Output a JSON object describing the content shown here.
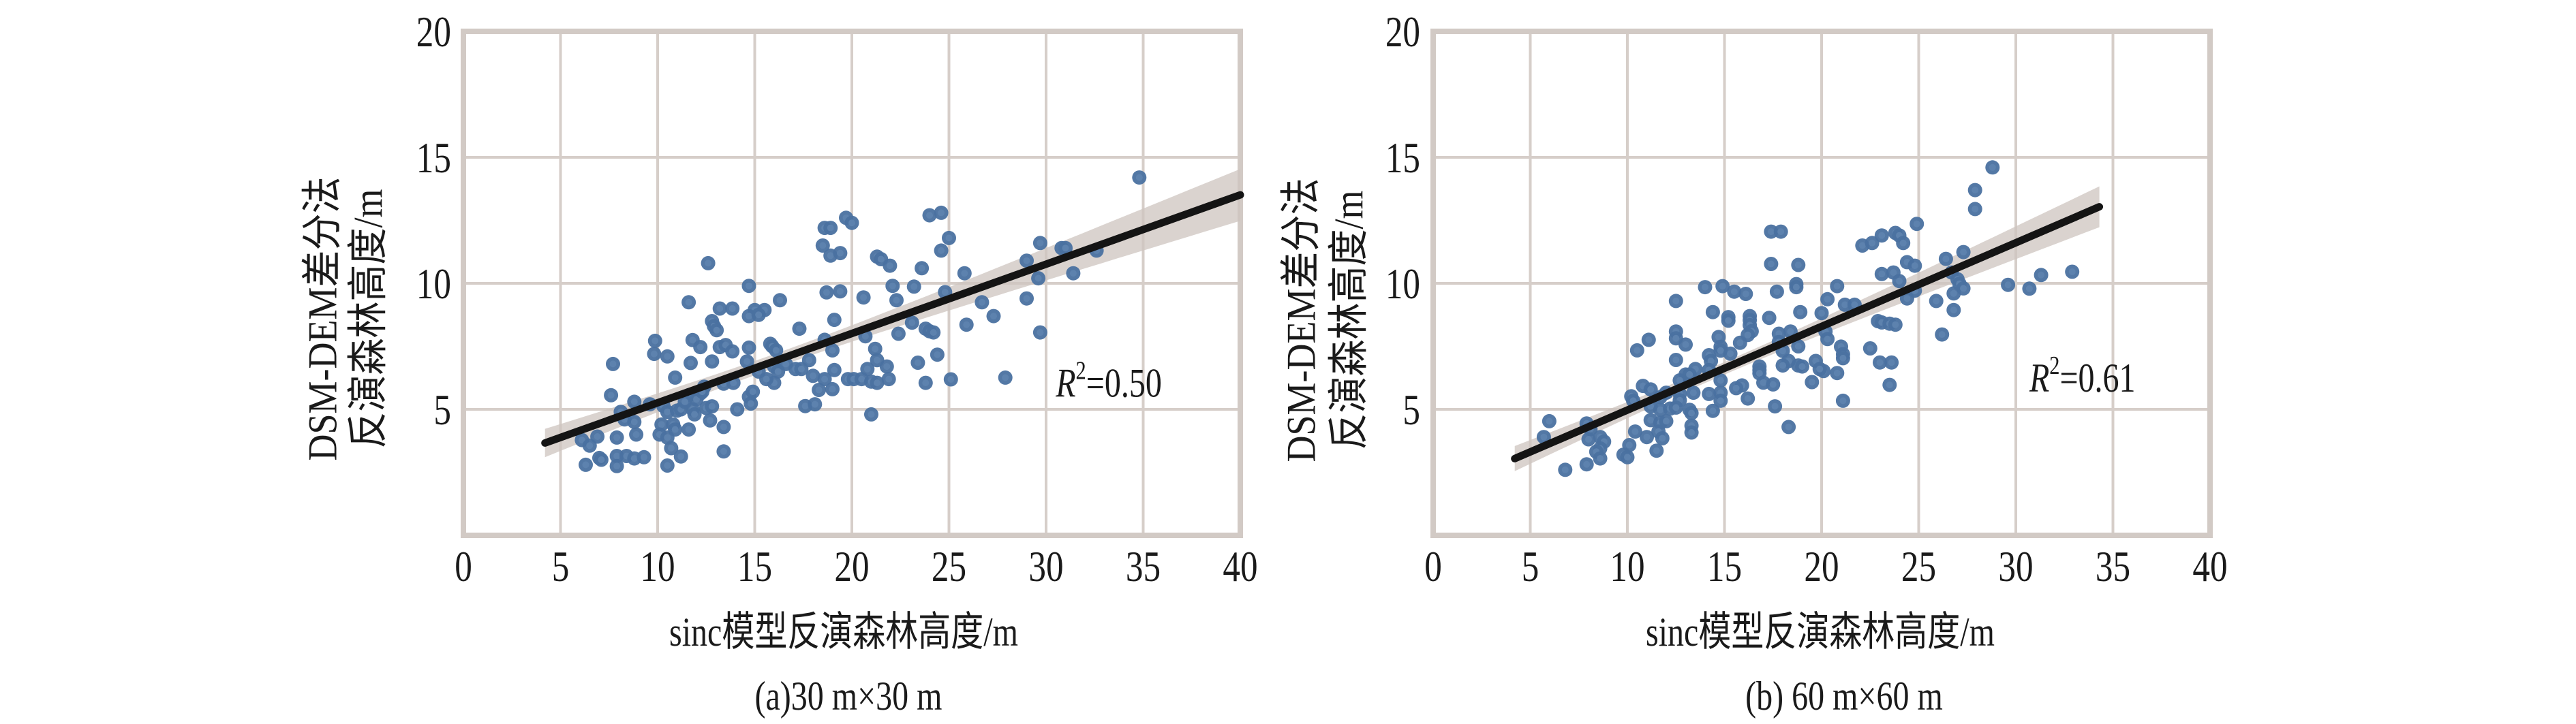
{
  "figure": {
    "panels": [
      {
        "caption": "(a)30 m×30 m",
        "xlabel": "sinc模型反演森林高度/m",
        "ylabel_line1": "DSM-DEM差分法",
        "ylabel_line2": "反演森林高度/m",
        "r2_symbol": "R",
        "r2_exponent": "2",
        "r2_value": "=0.50"
      },
      {
        "caption": "(b) 60 m×60 m",
        "xlabel": "sinc模型反演森林高度/m",
        "ylabel_line1": "DSM-DEM差分法",
        "ylabel_line2": "反演森林高度/m",
        "r2_symbol": "R",
        "r2_exponent": "2",
        "r2_value": "=0.61"
      }
    ]
  },
  "colors": {
    "point": "#4a71a0",
    "point_center": "#5d82ae",
    "grid": "#d6cec9",
    "frame": "#d2cac5",
    "fit_line": "#141414",
    "ci_band": "#cdc4bf"
  },
  "chart_data": [
    {
      "type": "scatter",
      "title": "(a)30 m×30 m",
      "xlabel": "sinc模型反演森林高度/m",
      "ylabel": "DSM-DEM差分法反演森林高度/m",
      "xlim": [
        0,
        40
      ],
      "ylim": [
        0,
        20
      ],
      "xticks": [
        "0",
        "5",
        "10",
        "15",
        "20",
        "25",
        "30",
        "35",
        "40"
      ],
      "yticks": [
        "5",
        "10",
        "15",
        "20"
      ],
      "grid": true,
      "annotation": {
        "text": "R2=0.50",
        "x": 30.5,
        "y": 5.5
      },
      "fit": {
        "slope": 0.275,
        "intercept": 2.51,
        "x_range": [
          4.2,
          40
        ]
      },
      "ci": {
        "x_center": 16,
        "half_width_center": 0.28,
        "spread": 0.0017
      },
      "points": [
        [
          34.8,
          14.2
        ],
        [
          24.0,
          12.7
        ],
        [
          24.6,
          12.8
        ],
        [
          19.7,
          12.6
        ],
        [
          20.0,
          12.4
        ],
        [
          18.6,
          12.2
        ],
        [
          18.9,
          12.2
        ],
        [
          25.0,
          11.8
        ],
        [
          18.5,
          11.5
        ],
        [
          18.9,
          11.1
        ],
        [
          19.4,
          11.2
        ],
        [
          24.6,
          11.3
        ],
        [
          29.7,
          11.6
        ],
        [
          30.8,
          11.4
        ],
        [
          31.0,
          11.4
        ],
        [
          32.6,
          11.3
        ],
        [
          21.3,
          11.06
        ],
        [
          21.5,
          10.96
        ],
        [
          21.96,
          10.7
        ],
        [
          12.6,
          10.8
        ],
        [
          23.6,
          10.6
        ],
        [
          29.0,
          10.9
        ],
        [
          25.8,
          10.4
        ],
        [
          29.6,
          10.2
        ],
        [
          31.4,
          10.4
        ],
        [
          22.1,
          9.9
        ],
        [
          23.2,
          9.87
        ],
        [
          14.7,
          9.9
        ],
        [
          18.7,
          9.64
        ],
        [
          19.4,
          9.68
        ],
        [
          24.8,
          9.65
        ],
        [
          20.6,
          9.44
        ],
        [
          11.6,
          9.25
        ],
        [
          16.3,
          9.33
        ],
        [
          22.3,
          9.33
        ],
        [
          29.0,
          9.4
        ],
        [
          26.7,
          9.25
        ],
        [
          13.2,
          9.0
        ],
        [
          13.85,
          9.0
        ],
        [
          15.0,
          8.94
        ],
        [
          15.5,
          8.94
        ],
        [
          14.7,
          8.7
        ],
        [
          15.2,
          8.75
        ],
        [
          27.3,
          8.7
        ],
        [
          12.8,
          8.5
        ],
        [
          12.9,
          8.3
        ],
        [
          13.04,
          8.14
        ],
        [
          19.1,
          8.55
        ],
        [
          17.3,
          8.2
        ],
        [
          23.1,
          8.44
        ],
        [
          25.9,
          8.36
        ],
        [
          29.7,
          8.05
        ],
        [
          23.8,
          8.2
        ],
        [
          24.0,
          8.1
        ],
        [
          24.2,
          8.05
        ],
        [
          22.4,
          8.0
        ],
        [
          9.87,
          7.72
        ],
        [
          11.8,
          7.75
        ],
        [
          12.2,
          7.47
        ],
        [
          18.6,
          7.76
        ],
        [
          20.7,
          7.9
        ],
        [
          13.2,
          7.47
        ],
        [
          13.5,
          7.55
        ],
        [
          9.82,
          7.2
        ],
        [
          10.5,
          7.1
        ],
        [
          13.85,
          7.3
        ],
        [
          14.7,
          7.45
        ],
        [
          15.8,
          7.6
        ],
        [
          15.9,
          7.5
        ],
        [
          16.1,
          7.34
        ],
        [
          19.0,
          7.34
        ],
        [
          21.2,
          7.4
        ],
        [
          24.4,
          7.17
        ],
        [
          7.7,
          6.8
        ],
        [
          11.7,
          6.84
        ],
        [
          12.8,
          6.9
        ],
        [
          14.6,
          6.9
        ],
        [
          17.8,
          6.95
        ],
        [
          21.3,
          6.95
        ],
        [
          23.4,
          6.85
        ],
        [
          16.0,
          6.7
        ],
        [
          16.2,
          6.5
        ],
        [
          17.1,
          6.6
        ],
        [
          17.4,
          6.6
        ],
        [
          19.1,
          6.56
        ],
        [
          20.8,
          6.6
        ],
        [
          21.8,
          6.7
        ],
        [
          15.2,
          6.5
        ],
        [
          10.9,
          6.26
        ],
        [
          18.0,
          6.33
        ],
        [
          18.6,
          6.2
        ],
        [
          19.8,
          6.2
        ],
        [
          20.1,
          6.2
        ],
        [
          20.5,
          6.2
        ],
        [
          21.0,
          6.1
        ],
        [
          21.3,
          6.05
        ],
        [
          21.9,
          6.2
        ],
        [
          23.8,
          6.05
        ],
        [
          25.1,
          6.19
        ],
        [
          27.9,
          6.26
        ],
        [
          13.4,
          6.02
        ],
        [
          13.9,
          6.05
        ],
        [
          16.0,
          6.05
        ],
        [
          19.0,
          5.8
        ],
        [
          18.3,
          5.77
        ],
        [
          7.6,
          5.56
        ],
        [
          8.8,
          5.3
        ],
        [
          9.6,
          5.2
        ],
        [
          11.6,
          5.56
        ],
        [
          12.2,
          5.63
        ],
        [
          14.7,
          5.5
        ],
        [
          14.9,
          5.7
        ],
        [
          14.8,
          5.23
        ],
        [
          17.6,
          5.13
        ],
        [
          18.1,
          5.2
        ],
        [
          14.1,
          5.0
        ],
        [
          21.0,
          4.8
        ],
        [
          8.1,
          4.9
        ],
        [
          10.3,
          5.13
        ],
        [
          10.5,
          4.9
        ],
        [
          11.0,
          4.95
        ],
        [
          11.2,
          5.0
        ],
        [
          11.8,
          5.0
        ],
        [
          11.9,
          4.8
        ],
        [
          12.5,
          5.05
        ],
        [
          12.8,
          5.12
        ],
        [
          8.3,
          4.6
        ],
        [
          8.8,
          4.5
        ],
        [
          10.2,
          4.4
        ],
        [
          10.8,
          4.4
        ],
        [
          10.9,
          4.2
        ],
        [
          11.6,
          4.2
        ],
        [
          12.7,
          4.56
        ],
        [
          13.4,
          4.3
        ],
        [
          6.1,
          3.78
        ],
        [
          6.5,
          3.56
        ],
        [
          6.9,
          3.92
        ],
        [
          7.9,
          3.88
        ],
        [
          8.9,
          4.0
        ],
        [
          10.1,
          4.0
        ],
        [
          10.5,
          3.88
        ],
        [
          7.0,
          3.07
        ],
        [
          7.1,
          3.0
        ],
        [
          7.9,
          3.15
        ],
        [
          8.4,
          3.15
        ],
        [
          8.8,
          3.05
        ],
        [
          9.3,
          3.1
        ],
        [
          6.3,
          2.8
        ],
        [
          7.9,
          2.75
        ],
        [
          10.5,
          2.77
        ],
        [
          10.7,
          3.46
        ],
        [
          11.2,
          3.13
        ],
        [
          13.4,
          3.33
        ],
        [
          12.4,
          5.9
        ],
        [
          11.4,
          5.3
        ],
        [
          12.0,
          5.4
        ],
        [
          12.3,
          5.7
        ],
        [
          15.6,
          6.2
        ],
        [
          16.6,
          6.8
        ]
      ]
    },
    {
      "type": "scatter",
      "title": "(b) 60 m×60 m",
      "xlabel": "sinc模型反演森林高度/m",
      "ylabel": "DSM-DEM差分法反演森林高度/m",
      "xlim": [
        0,
        40
      ],
      "ylim": [
        0,
        20
      ],
      "xticks": [
        "0",
        "5",
        "10",
        "15",
        "20",
        "25",
        "30",
        "35",
        "40"
      ],
      "yticks": [
        "5",
        "10",
        "15",
        "20"
      ],
      "grid": true,
      "annotation": {
        "text": "R2=0.61",
        "x": 30.7,
        "y": 5.7
      },
      "fit": {
        "slope": 0.332,
        "intercept": 1.65,
        "x_range": [
          4.2,
          34.3
        ]
      },
      "ci": {
        "x_center": 15,
        "half_width_center": 0.25,
        "spread": 0.0016
      },
      "points": [
        [
          28.8,
          14.6
        ],
        [
          27.9,
          13.7
        ],
        [
          27.9,
          12.95
        ],
        [
          17.4,
          12.05
        ],
        [
          17.9,
          12.05
        ],
        [
          24.9,
          12.36
        ],
        [
          22.1,
          11.5
        ],
        [
          22.6,
          11.6
        ],
        [
          23.1,
          11.9
        ],
        [
          23.8,
          12.0
        ],
        [
          24.0,
          11.9
        ],
        [
          24.2,
          11.6
        ],
        [
          27.3,
          11.24
        ],
        [
          26.4,
          10.97
        ],
        [
          17.4,
          10.77
        ],
        [
          18.8,
          10.73
        ],
        [
          24.4,
          10.84
        ],
        [
          24.8,
          10.7
        ],
        [
          23.1,
          10.37
        ],
        [
          23.7,
          10.43
        ],
        [
          26.7,
          10.43
        ],
        [
          32.9,
          10.46
        ],
        [
          31.3,
          10.33
        ],
        [
          29.6,
          9.94
        ],
        [
          30.7,
          9.79
        ],
        [
          27.0,
          10.16
        ],
        [
          27.1,
          9.98
        ],
        [
          27.3,
          9.8
        ],
        [
          26.8,
          9.6
        ],
        [
          24.0,
          10.09
        ],
        [
          24.8,
          9.71
        ],
        [
          24.4,
          9.4
        ],
        [
          25.9,
          9.3
        ],
        [
          26.8,
          8.94
        ],
        [
          26.2,
          7.97
        ],
        [
          14.0,
          9.85
        ],
        [
          14.9,
          9.89
        ],
        [
          15.5,
          9.67
        ],
        [
          16.1,
          9.58
        ],
        [
          17.7,
          9.67
        ],
        [
          18.7,
          9.97
        ],
        [
          18.7,
          9.85
        ],
        [
          20.8,
          9.89
        ],
        [
          12.5,
          9.3
        ],
        [
          14.4,
          8.86
        ],
        [
          15.2,
          8.66
        ],
        [
          15.2,
          8.52
        ],
        [
          16.3,
          8.7
        ],
        [
          16.3,
          8.54
        ],
        [
          17.3,
          8.63
        ],
        [
          18.9,
          8.86
        ],
        [
          20.3,
          9.37
        ],
        [
          20.0,
          8.82
        ],
        [
          21.2,
          9.15
        ],
        [
          21.7,
          9.15
        ],
        [
          22.9,
          8.5
        ],
        [
          23.1,
          8.45
        ],
        [
          23.5,
          8.4
        ],
        [
          23.8,
          8.36
        ],
        [
          16.3,
          8.34
        ],
        [
          16.4,
          8.1
        ],
        [
          16.2,
          7.95
        ],
        [
          12.5,
          8.09
        ],
        [
          12.5,
          7.82
        ],
        [
          14.7,
          7.87
        ],
        [
          15.8,
          7.64
        ],
        [
          17.8,
          8.0
        ],
        [
          18.4,
          8.09
        ],
        [
          20.2,
          8.09
        ],
        [
          20.3,
          7.79
        ],
        [
          11.1,
          7.76
        ],
        [
          13.0,
          7.57
        ],
        [
          14.8,
          7.48
        ],
        [
          10.5,
          7.34
        ],
        [
          17.8,
          7.67
        ],
        [
          18.8,
          7.5
        ],
        [
          18.0,
          7.32
        ],
        [
          21.0,
          7.49
        ],
        [
          22.5,
          7.42
        ],
        [
          14.2,
          7.15
        ],
        [
          14.8,
          7.33
        ],
        [
          15.3,
          7.21
        ],
        [
          21.1,
          7.19
        ],
        [
          12.5,
          6.96
        ],
        [
          14.3,
          6.92
        ],
        [
          18.3,
          6.92
        ],
        [
          18.0,
          6.74
        ],
        [
          19.7,
          6.92
        ],
        [
          21.1,
          7.03
        ],
        [
          18.8,
          6.74
        ],
        [
          19.0,
          6.7
        ],
        [
          23.0,
          6.86
        ],
        [
          23.6,
          6.86
        ],
        [
          13.5,
          6.6
        ],
        [
          14.2,
          6.56
        ],
        [
          16.8,
          6.7
        ],
        [
          16.8,
          6.56
        ],
        [
          20.1,
          6.52
        ],
        [
          20.8,
          6.44
        ],
        [
          19.9,
          6.6
        ],
        [
          13.0,
          6.38
        ],
        [
          13.2,
          6.38
        ],
        [
          16.8,
          6.43
        ],
        [
          12.7,
          6.15
        ],
        [
          14.8,
          6.15
        ],
        [
          15.9,
          5.95
        ],
        [
          15.6,
          5.84
        ],
        [
          17.0,
          6.06
        ],
        [
          17.5,
          5.99
        ],
        [
          19.5,
          6.08
        ],
        [
          23.5,
          5.97
        ],
        [
          10.8,
          5.93
        ],
        [
          11.2,
          5.79
        ],
        [
          13.4,
          5.66
        ],
        [
          14.2,
          5.61
        ],
        [
          14.8,
          5.66
        ],
        [
          16.2,
          5.43
        ],
        [
          10.2,
          5.52
        ],
        [
          10.3,
          5.34
        ],
        [
          12.0,
          5.66
        ],
        [
          12.7,
          5.61
        ],
        [
          12.7,
          5.36
        ],
        [
          11.7,
          5.48
        ],
        [
          14.8,
          5.34
        ],
        [
          21.1,
          5.34
        ],
        [
          17.6,
          5.12
        ],
        [
          11.2,
          5.12
        ],
        [
          11.7,
          4.98
        ],
        [
          12.2,
          5.03
        ],
        [
          12.5,
          5.07
        ],
        [
          13.2,
          4.98
        ],
        [
          13.3,
          4.85
        ],
        [
          14.4,
          4.94
        ],
        [
          11.2,
          4.57
        ],
        [
          11.7,
          4.47
        ],
        [
          12.0,
          4.53
        ],
        [
          11.6,
          4.12
        ],
        [
          13.3,
          4.35
        ],
        [
          13.3,
          4.08
        ],
        [
          18.3,
          4.3
        ],
        [
          5.98,
          4.53
        ],
        [
          5.7,
          3.9
        ],
        [
          7.9,
          4.44
        ],
        [
          8.1,
          4.22
        ],
        [
          8.6,
          3.9
        ],
        [
          8.8,
          3.72
        ],
        [
          8.0,
          3.81
        ],
        [
          10.4,
          4.12
        ],
        [
          11.0,
          3.9
        ],
        [
          11.8,
          3.85
        ],
        [
          10.1,
          3.58
        ],
        [
          8.6,
          3.45
        ],
        [
          8.4,
          3.32
        ],
        [
          8.6,
          3.05
        ],
        [
          9.8,
          3.2
        ],
        [
          10.0,
          3.1
        ],
        [
          11.5,
          3.36
        ],
        [
          7.9,
          2.82
        ],
        [
          6.8,
          2.6
        ]
      ]
    }
  ]
}
